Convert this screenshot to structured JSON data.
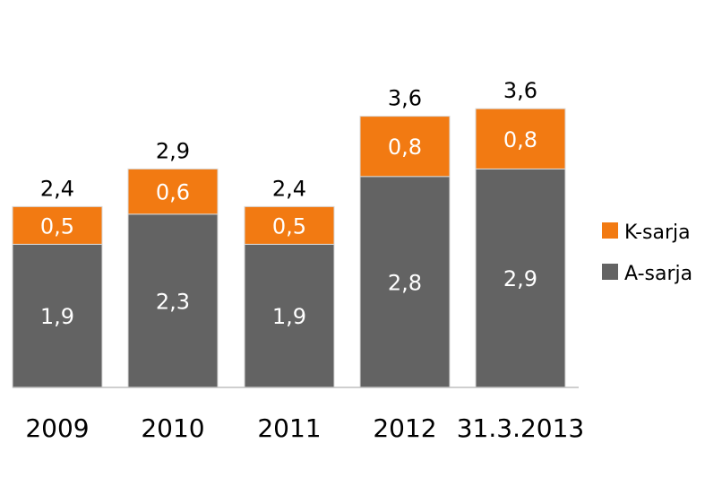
{
  "chart_data": {
    "type": "bar",
    "stacked": true,
    "categories": [
      "2009",
      "2010",
      "2011",
      "2012",
      "31.3.2013"
    ],
    "series": [
      {
        "name": "A-sarja",
        "values": [
          1.9,
          2.3,
          1.9,
          2.8,
          2.9
        ],
        "labels": [
          "1,9",
          "2,3",
          "1,9",
          "2,8",
          "2,9"
        ],
        "color": "#636363"
      },
      {
        "name": "K-sarja",
        "values": [
          0.5,
          0.6,
          0.5,
          0.8,
          0.8
        ],
        "labels": [
          "0,5",
          "0,6",
          "0,5",
          "0,8",
          "0,8"
        ],
        "color": "#f27a12"
      }
    ],
    "totals": [
      2.4,
      2.9,
      2.4,
      3.6,
      3.6
    ],
    "total_labels": [
      "2,4",
      "2,9",
      "2,4",
      "3,6",
      "3,6"
    ],
    "legend": {
      "position": "right",
      "order": [
        "K-sarja",
        "A-sarja"
      ]
    },
    "ylim": [
      0,
      4.0
    ],
    "grid": false
  }
}
